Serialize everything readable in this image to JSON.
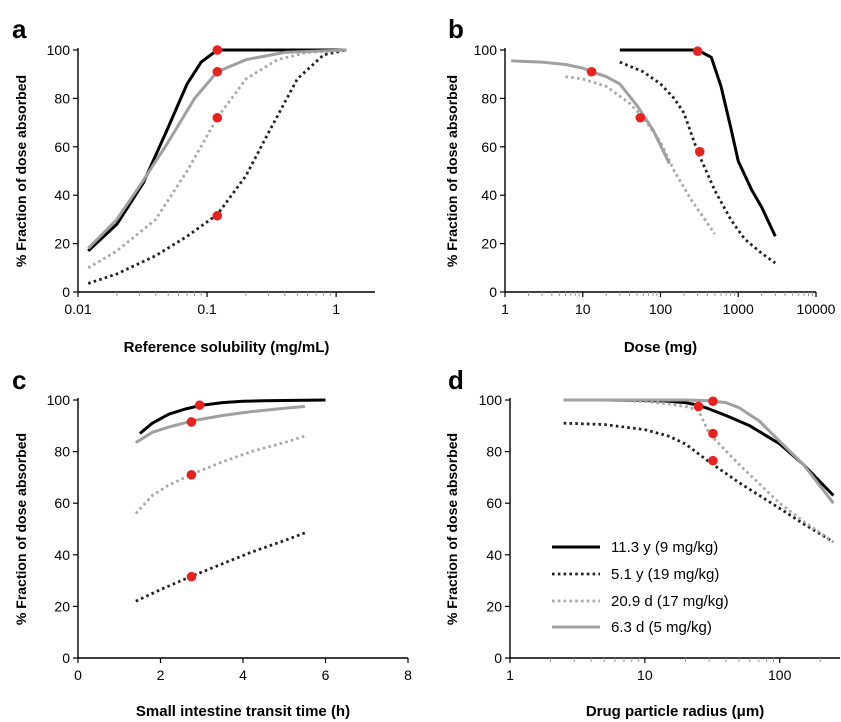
{
  "legend": [
    {
      "label": "11.3 y (9 mg/kg)",
      "color": "#000000",
      "dash": "solid"
    },
    {
      "label": "5.1 y (19 mg/kg)",
      "color": "#222222",
      "dash": "dotted"
    },
    {
      "label": "20.9 d (17 mg/kg)",
      "color": "#a8a8a8",
      "dash": "dotted"
    },
    {
      "label": "6.3 d (5 mg/kg)",
      "color": "#a0a0a0",
      "dash": "solid"
    }
  ],
  "marker_color": "#e8231f",
  "chart_data": [
    {
      "type": "line",
      "panel_label": "a",
      "xlabel": "Reference solubility (mg/mL)",
      "ylabel": "% Fraction of dose absorbed",
      "xscale": "log",
      "xlim": [
        0.01,
        2
      ],
      "ylim": [
        0,
        100
      ],
      "xticks": [
        0.01,
        0.1,
        1
      ],
      "xtick_labels": [
        "0.01",
        "0.1",
        "1"
      ],
      "yticks": [
        0,
        20,
        40,
        60,
        80,
        100
      ],
      "series": [
        {
          "x": [
            0.012,
            0.02,
            0.032,
            0.05,
            0.07,
            0.09,
            0.12,
            0.2,
            0.5,
            1.2
          ],
          "y": [
            17,
            28,
            45,
            68,
            86,
            95,
            100,
            100,
            100,
            100
          ]
        },
        {
          "x": [
            0.012,
            0.02,
            0.04,
            0.07,
            0.12,
            0.2,
            0.3,
            0.5,
            0.8,
            1.2
          ],
          "y": [
            3.5,
            7.5,
            15,
            23,
            32,
            48,
            66,
            88,
            98,
            100
          ]
        },
        {
          "x": [
            0.012,
            0.02,
            0.04,
            0.07,
            0.12,
            0.2,
            0.35,
            0.6,
            1.2
          ],
          "y": [
            10,
            17,
            30,
            50,
            72,
            88,
            96,
            99,
            100
          ]
        },
        {
          "x": [
            0.012,
            0.02,
            0.032,
            0.05,
            0.08,
            0.12,
            0.2,
            0.4,
            1.2
          ],
          "y": [
            18,
            30,
            46,
            62,
            80,
            91,
            96,
            99,
            100
          ]
        }
      ],
      "markers": [
        {
          "x": 0.12,
          "y": 100
        },
        {
          "x": 0.12,
          "y": 31.5
        },
        {
          "x": 0.12,
          "y": 72
        },
        {
          "x": 0.12,
          "y": 91
        }
      ]
    },
    {
      "type": "line",
      "panel_label": "b",
      "xlabel": "Dose (mg)",
      "ylabel": "% Fraction of dose absorbed",
      "xscale": "log",
      "xlim": [
        1,
        10000
      ],
      "ylim": [
        0,
        100
      ],
      "xticks": [
        1,
        10,
        100,
        1000,
        10000
      ],
      "xtick_labels": [
        "1",
        "10",
        "100",
        "1000",
        "10000"
      ],
      "yticks": [
        0,
        20,
        40,
        60,
        80,
        100
      ],
      "series": [
        {
          "x": [
            30,
            100,
            300,
            450,
            600,
            800,
            1000,
            1500,
            2000,
            3000
          ],
          "y": [
            100,
            100,
            100,
            97,
            85,
            68,
            54,
            42,
            35,
            23
          ]
        },
        {
          "x": [
            30,
            60,
            100,
            150,
            200,
            300,
            500,
            800,
            1200,
            2000,
            3000
          ],
          "y": [
            95,
            91,
            86,
            80,
            74,
            58,
            42,
            30,
            22,
            16,
            12
          ]
        },
        {
          "x": [
            6,
            10,
            20,
            40,
            60,
            100,
            150,
            250,
            500
          ],
          "y": [
            89,
            88,
            85,
            78,
            72,
            62,
            50,
            38,
            24
          ]
        },
        {
          "x": [
            1.2,
            3,
            6,
            10,
            13,
            20,
            30,
            50,
            80,
            130
          ],
          "y": [
            95.5,
            95,
            94,
            92.5,
            91,
            89,
            86,
            77,
            67,
            53
          ]
        }
      ],
      "markers": [
        {
          "x": 13,
          "y": 91
        },
        {
          "x": 55,
          "y": 72
        },
        {
          "x": 300,
          "y": 99.5
        },
        {
          "x": 320,
          "y": 58
        }
      ]
    },
    {
      "type": "line",
      "panel_label": "c",
      "xlabel": "Small intestine transit time (h)",
      "ylabel": "% Fraction of dose absorbed",
      "xscale": "linear",
      "xlim": [
        0,
        8
      ],
      "ylim": [
        0,
        100
      ],
      "xticks": [
        0,
        2,
        4,
        6,
        8
      ],
      "xtick_labels": [
        "0",
        "2",
        "4",
        "6",
        "8"
      ],
      "yticks": [
        0,
        20,
        40,
        60,
        80,
        100
      ],
      "series": [
        {
          "x": [
            1.5,
            1.8,
            2.2,
            2.6,
            3,
            3.5,
            4,
            4.5,
            5,
            5.5,
            6
          ],
          "y": [
            87,
            91,
            94.5,
            96.5,
            98,
            99,
            99.5,
            99.7,
            99.8,
            99.9,
            100
          ]
        },
        {
          "x": [
            1.4,
            2,
            2.8,
            3.5,
            4.2,
            5,
            5.5
          ],
          "y": [
            22,
            26.5,
            32,
            36.5,
            41,
            45.5,
            48.5
          ]
        },
        {
          "x": [
            1.4,
            1.8,
            2.2,
            2.8,
            3.5,
            4.2,
            5,
            5.5
          ],
          "y": [
            56,
            63,
            67,
            71.5,
            76,
            80,
            83.5,
            86
          ]
        },
        {
          "x": [
            1.4,
            1.8,
            2.2,
            2.8,
            3.5,
            4.2,
            5,
            5.5
          ],
          "y": [
            83.5,
            87.5,
            89.5,
            92,
            94,
            95.5,
            96.8,
            97.5
          ]
        }
      ],
      "markers": [
        {
          "x": 2.95,
          "y": 98
        },
        {
          "x": 2.75,
          "y": 91.5
        },
        {
          "x": 2.75,
          "y": 71
        },
        {
          "x": 2.75,
          "y": 31.5
        }
      ]
    },
    {
      "type": "line",
      "panel_label": "d",
      "xlabel": "Drug particle radius (μm)",
      "ylabel": "% Fraction of dose absorbed",
      "xscale": "log",
      "xlim": [
        1,
        280
      ],
      "ylim": [
        0,
        100
      ],
      "xticks": [
        1,
        10,
        100
      ],
      "xtick_labels": [
        "1",
        "10",
        "100"
      ],
      "yticks": [
        0,
        20,
        40,
        60,
        80,
        100
      ],
      "series": [
        {
          "x": [
            2.5,
            5,
            10,
            15,
            20,
            25,
            30,
            40,
            60,
            100,
            150,
            250
          ],
          "y": [
            100,
            100,
            99.8,
            99.5,
            99,
            98,
            96.5,
            94,
            90,
            83,
            75,
            63
          ]
        },
        {
          "x": [
            2.5,
            5,
            10,
            15,
            20,
            30,
            50,
            100,
            150,
            250
          ],
          "y": [
            91,
            90.5,
            88.5,
            86,
            83,
            76,
            68,
            58,
            52,
            45
          ]
        },
        {
          "x": [
            2.5,
            5,
            10,
            15,
            20,
            25,
            30,
            50,
            100,
            150,
            250
          ],
          "y": [
            100,
            100,
            99.5,
            98.5,
            97.5,
            96,
            87,
            75,
            60,
            53,
            45
          ]
        },
        {
          "x": [
            2.5,
            5,
            10,
            20,
            30,
            40,
            50,
            70,
            100,
            150,
            250
          ],
          "y": [
            100,
            100,
            100,
            100,
            99.7,
            99,
            97,
            92,
            84,
            75,
            60
          ]
        }
      ],
      "markers": [
        {
          "x": 25,
          "y": 97.5
        },
        {
          "x": 32,
          "y": 99.5
        },
        {
          "x": 32,
          "y": 87
        },
        {
          "x": 32,
          "y": 76.5
        }
      ]
    }
  ]
}
